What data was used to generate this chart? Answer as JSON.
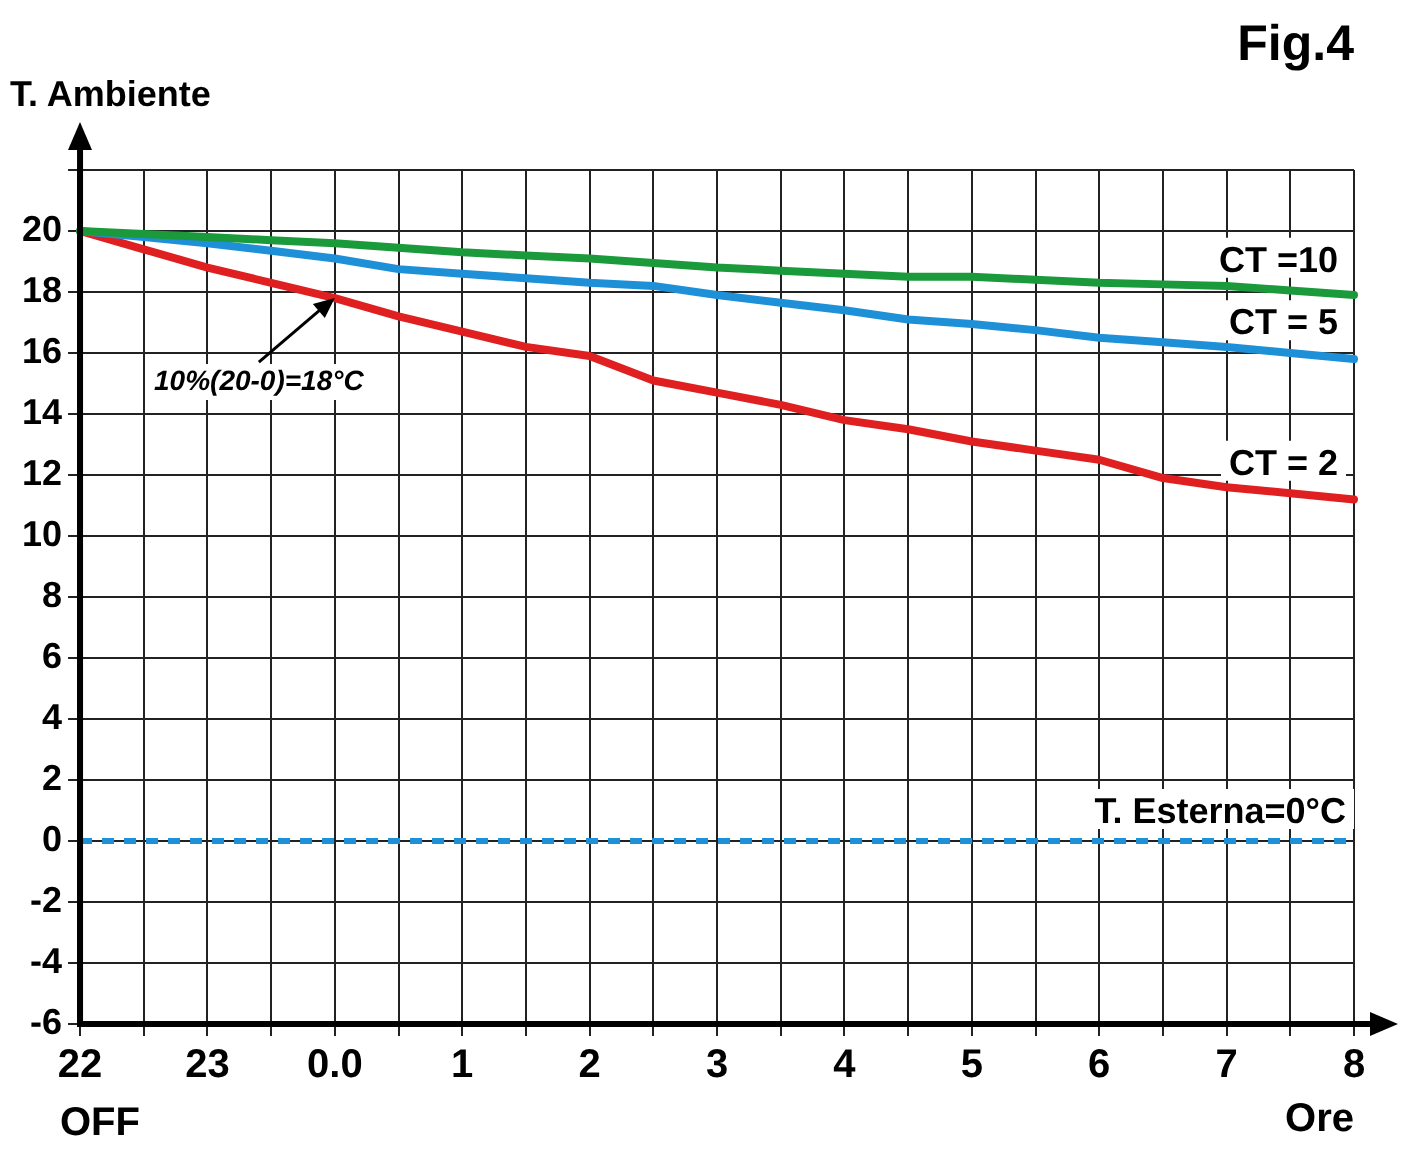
{
  "chart_data": {
    "type": "line",
    "title": "Fig.4",
    "ylabel": "T. Ambiente",
    "xlabel": "Ore",
    "categories": [
      "22",
      null,
      "23",
      null,
      "0.0",
      null,
      "1",
      null,
      "2",
      null,
      "3",
      null,
      "4",
      null,
      "5",
      null,
      "6",
      null,
      "7",
      null,
      "8"
    ],
    "ylim": [
      -6,
      22
    ],
    "yticks": [
      -6,
      -4,
      -2,
      0,
      2,
      4,
      6,
      8,
      10,
      12,
      14,
      16,
      18,
      20,
      {
        "value": 22,
        "label": null
      }
    ],
    "grid": true,
    "legend": false,
    "marker": "none",
    "line_style": "solid",
    "series": [
      {
        "name": "CT =10",
        "color": "#1a9a3a",
        "values": [
          20,
          19.9,
          19.8,
          19.7,
          19.6,
          19.45,
          19.3,
          19.2,
          19.1,
          18.95,
          18.8,
          18.7,
          18.6,
          18.5,
          18.5,
          18.4,
          18.3,
          18.25,
          18.2,
          18.05,
          17.9
        ]
      },
      {
        "name": "CT = 5",
        "color": "#1e90d8",
        "values": [
          20,
          19.8,
          19.6,
          19.35,
          19.1,
          18.75,
          18.6,
          18.45,
          18.3,
          18.2,
          17.9,
          17.65,
          17.4,
          17.1,
          16.95,
          16.75,
          16.5,
          16.35,
          16.2,
          16,
          15.8
        ]
      },
      {
        "name": "CT = 2",
        "color": "#e02020",
        "values": [
          20,
          19.4,
          18.8,
          18.3,
          17.8,
          17.2,
          16.7,
          16.2,
          15.9,
          15.1,
          14.7,
          14.3,
          13.8,
          13.5,
          13.1,
          12.8,
          12.5,
          11.9,
          11.6,
          11.4,
          11.2
        ]
      }
    ],
    "ref_lines": [
      {
        "axis": "y",
        "value": 0,
        "label": "T. Esterna=0°C",
        "color": "#1e90d8",
        "line_style": "dashed"
      }
    ],
    "annotations": [
      {
        "text": "10%(20-0)=18°C",
        "x": "0.0",
        "y": 17.8
      },
      "OFF"
    ]
  }
}
